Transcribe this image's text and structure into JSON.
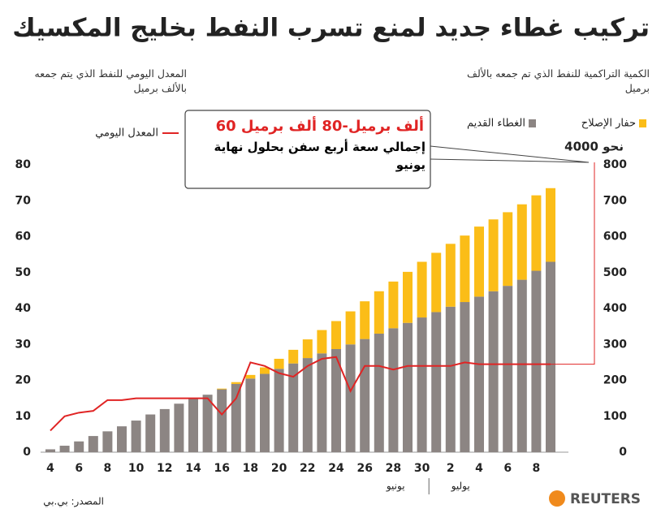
{
  "chart_data": {
    "type": "bar",
    "title": "تركيب غطاء جديد لمنع تسرب النفط بخليج المكسيك",
    "y_label": "المعدل اليومي للنفط الذي يتم جمعه بالألف برميل",
    "y2_label": "الكمية التراكمية للنفط الذي تم جمعه بالألف برميل",
    "annotation": {
      "headline": "60 ألف برميل-80 ألف برميل",
      "text": "إجمالي سعة أربع سفن بحلول نهاية يونيو"
    },
    "note": "نحو 4000",
    "categories": [
      "4",
      null,
      "6",
      null,
      "8",
      null,
      "10",
      null,
      "12",
      null,
      "14",
      null,
      "16",
      null,
      "18",
      null,
      "20",
      null,
      "22",
      null,
      "24",
      null,
      "26",
      null,
      "28",
      null,
      "30",
      null,
      "2",
      null,
      "4",
      null,
      "6",
      null,
      "8",
      null
    ],
    "months": [
      "يونيو",
      "يوليو"
    ],
    "series": [
      {
        "name": "الغطاء القديم",
        "color": "#8c8583",
        "axis": "y2",
        "values": [
          8,
          18,
          30,
          45,
          58,
          72,
          88,
          105,
          120,
          135,
          148,
          160,
          175,
          190,
          205,
          218,
          232,
          247,
          262,
          275,
          287,
          300,
          315,
          330,
          345,
          360,
          375,
          390,
          405,
          418,
          433,
          448,
          463,
          480,
          505,
          530
        ]
      },
      {
        "name": "حفار الإصلاح",
        "color": "#fbbd18",
        "axis": "y2",
        "values": [
          null,
          null,
          null,
          null,
          null,
          null,
          null,
          null,
          null,
          null,
          null,
          null,
          2,
          5,
          10,
          18,
          28,
          38,
          52,
          65,
          78,
          92,
          105,
          118,
          130,
          142,
          155,
          165,
          175,
          185,
          195,
          200,
          205,
          210,
          210,
          205
        ]
      },
      {
        "name": "المعدل اليومي",
        "color": "#e02424",
        "type": "line",
        "values": [
          6,
          10,
          11,
          11.5,
          14.5,
          14.5,
          15,
          15,
          15,
          15,
          15,
          15,
          10.5,
          15,
          25,
          24,
          22,
          21,
          24,
          26,
          26.5,
          17,
          24,
          24,
          23,
          24,
          24,
          24,
          24,
          25,
          24.5,
          24.5,
          24.5,
          24.5,
          24.5,
          24.5
        ]
      }
    ],
    "ylim": [
      0,
      80
    ],
    "yticks": [
      0,
      10,
      20,
      30,
      40,
      50,
      60,
      70,
      80
    ],
    "y2lim": [
      0,
      800
    ],
    "y2ticks": [
      0,
      100,
      200,
      300,
      400,
      500,
      600,
      700,
      800
    ],
    "source": "المصدر: بي.بي",
    "logo": "REUTERS"
  }
}
